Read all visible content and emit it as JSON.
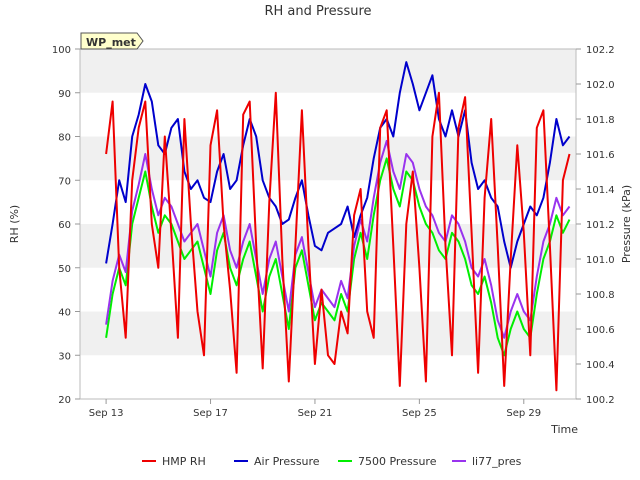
{
  "chart_data": {
    "type": "line",
    "title": "RH and Pressure",
    "badge": "WP_met",
    "xlabel": "Time",
    "ylabel_left": "RH (%)",
    "ylabel_right": "Pressure (kPa)",
    "x_range": [
      "Sep 13",
      "Oct 1"
    ],
    "x_ticks": [
      "Sep 13",
      "Sep 17",
      "Sep 21",
      "Sep 25",
      "Sep 29"
    ],
    "ylim_left": [
      20,
      100
    ],
    "yticks_left": [
      "20",
      "30",
      "40",
      "50",
      "60",
      "70",
      "80",
      "90",
      "100"
    ],
    "ylim_right": [
      100.2,
      102.2
    ],
    "yticks_right": [
      "100.2",
      "100.4",
      "100.6",
      "100.8",
      "101.0",
      "101.2",
      "101.4",
      "101.6",
      "101.8",
      "102.0",
      "102.2"
    ],
    "grid": "horizontal bands",
    "legend_position": "bottom",
    "colors": {
      "HMP RH": "#ee0000",
      "Air Pressure": "#0000cc",
      "7500 Pressure": "#00ee00",
      "li77_pres": "#9933ee",
      "band": "#f0f0f0",
      "badge_bg": "#ffffcc",
      "badge_text": "#990000"
    },
    "series": [
      {
        "name": "HMP RH",
        "axis": "left",
        "x": [
          "Sep 13.0",
          "Sep 13.25",
          "Sep 13.5",
          "Sep 13.75",
          "Sep 14.0",
          "Sep 14.25",
          "Sep 14.5",
          "Sep 14.75",
          "Sep 15.0",
          "Sep 15.25",
          "Sep 15.5",
          "Sep 15.75",
          "Sep 16.0",
          "Sep 16.25",
          "Sep 16.5",
          "Sep 16.75",
          "Sep 17.0",
          "Sep 17.25",
          "Sep 17.5",
          "Sep 17.75",
          "Sep 18.0",
          "Sep 18.25",
          "Sep 18.5",
          "Sep 18.75",
          "Sep 19.0",
          "Sep 19.25",
          "Sep 19.5",
          "Sep 19.75",
          "Sep 20.0",
          "Sep 20.25",
          "Sep 20.5",
          "Sep 20.75",
          "Sep 21.0",
          "Sep 21.25",
          "Sep 21.5",
          "Sep 21.75",
          "Sep 22.0",
          "Sep 22.25",
          "Sep 22.5",
          "Sep 22.75",
          "Sep 23.0",
          "Sep 23.25",
          "Sep 23.5",
          "Sep 23.75",
          "Sep 24.0",
          "Sep 24.25",
          "Sep 24.5",
          "Sep 24.75",
          "Sep 25.0",
          "Sep 25.25",
          "Sep 25.5",
          "Sep 25.75",
          "Sep 26.0",
          "Sep 26.25",
          "Sep 26.5",
          "Sep 26.75",
          "Sep 27.0",
          "Sep 27.25",
          "Sep 27.5",
          "Sep 27.75",
          "Sep 28.0",
          "Sep 28.25",
          "Sep 28.5",
          "Sep 28.75",
          "Sep 29.0",
          "Sep 29.25",
          "Sep 29.5",
          "Sep 29.75",
          "Sep 30.0",
          "Sep 30.25",
          "Sep 30.5",
          "Sep 30.75"
        ],
        "values": [
          76,
          88,
          50,
          34,
          70,
          82,
          88,
          60,
          50,
          80,
          58,
          34,
          84,
          60,
          40,
          30,
          78,
          86,
          60,
          45,
          26,
          85,
          88,
          55,
          27,
          65,
          90,
          52,
          24,
          55,
          86,
          55,
          28,
          45,
          30,
          28,
          40,
          35,
          62,
          68,
          40,
          34,
          82,
          86,
          55,
          23,
          60,
          72,
          50,
          24,
          80,
          90,
          55,
          30,
          82,
          89,
          58,
          26,
          66,
          84,
          55,
          23,
          52,
          78,
          58,
          30,
          82,
          86,
          55,
          22,
          70,
          76
        ],
        "unit": "%"
      },
      {
        "name": "Air Pressure",
        "axis": "left",
        "x": [
          "Sep 13.0",
          "Sep 13.25",
          "Sep 13.5",
          "Sep 13.75",
          "Sep 14.0",
          "Sep 14.25",
          "Sep 14.5",
          "Sep 14.75",
          "Sep 15.0",
          "Sep 15.25",
          "Sep 15.5",
          "Sep 15.75",
          "Sep 16.0",
          "Sep 16.25",
          "Sep 16.5",
          "Sep 16.75",
          "Sep 17.0",
          "Sep 17.25",
          "Sep 17.5",
          "Sep 17.75",
          "Sep 18.0",
          "Sep 18.25",
          "Sep 18.5",
          "Sep 18.75",
          "Sep 19.0",
          "Sep 19.25",
          "Sep 19.5",
          "Sep 19.75",
          "Sep 20.0",
          "Sep 20.25",
          "Sep 20.5",
          "Sep 20.75",
          "Sep 21.0",
          "Sep 21.25",
          "Sep 21.5",
          "Sep 21.75",
          "Sep 22.0",
          "Sep 22.25",
          "Sep 22.5",
          "Sep 22.75",
          "Sep 23.0",
          "Sep 23.25",
          "Sep 23.5",
          "Sep 23.75",
          "Sep 24.0",
          "Sep 24.25",
          "Sep 24.5",
          "Sep 24.75",
          "Sep 25.0",
          "Sep 25.25",
          "Sep 25.5",
          "Sep 25.75",
          "Sep 26.0",
          "Sep 26.25",
          "Sep 26.5",
          "Sep 26.75",
          "Sep 27.0",
          "Sep 27.25",
          "Sep 27.5",
          "Sep 27.75",
          "Sep 28.0",
          "Sep 28.25",
          "Sep 28.5",
          "Sep 28.75",
          "Sep 29.0",
          "Sep 29.25",
          "Sep 29.5",
          "Sep 29.75",
          "Sep 30.0",
          "Sep 30.25",
          "Sep 30.5",
          "Sep 30.75"
        ],
        "values": [
          51,
          60,
          70,
          65,
          80,
          85,
          92,
          88,
          78,
          76,
          82,
          84,
          72,
          68,
          70,
          66,
          65,
          72,
          76,
          68,
          70,
          78,
          84,
          80,
          70,
          66,
          64,
          60,
          61,
          66,
          70,
          62,
          55,
          54,
          58,
          59,
          60,
          64,
          57,
          62,
          66,
          75,
          82,
          84,
          80,
          90,
          97,
          92,
          86,
          90,
          94,
          84,
          80,
          86,
          80,
          86,
          74,
          68,
          70,
          66,
          64,
          56,
          50,
          56,
          60,
          64,
          62,
          66,
          74,
          84,
          78,
          80
        ],
        "unit": "%"
      },
      {
        "name": "7500 Pressure",
        "axis": "left",
        "x": [
          "Sep 13.0",
          "Sep 13.25",
          "Sep 13.5",
          "Sep 13.75",
          "Sep 14.0",
          "Sep 14.25",
          "Sep 14.5",
          "Sep 14.75",
          "Sep 15.0",
          "Sep 15.25",
          "Sep 15.5",
          "Sep 15.75",
          "Sep 16.0",
          "Sep 16.25",
          "Sep 16.5",
          "Sep 16.75",
          "Sep 17.0",
          "Sep 17.25",
          "Sep 17.5",
          "Sep 17.75",
          "Sep 18.0",
          "Sep 18.25",
          "Sep 18.5",
          "Sep 18.75",
          "Sep 19.0",
          "Sep 19.25",
          "Sep 19.5",
          "Sep 19.75",
          "Sep 20.0",
          "Sep 20.25",
          "Sep 20.5",
          "Sep 20.75",
          "Sep 21.0",
          "Sep 21.25",
          "Sep 21.5",
          "Sep 21.75",
          "Sep 22.0",
          "Sep 22.25",
          "Sep 22.5",
          "Sep 22.75",
          "Sep 23.0",
          "Sep 23.25",
          "Sep 23.5",
          "Sep 23.75",
          "Sep 24.0",
          "Sep 24.25",
          "Sep 24.5",
          "Sep 24.75",
          "Sep 25.0",
          "Sep 25.25",
          "Sep 25.5",
          "Sep 25.75",
          "Sep 26.0",
          "Sep 26.25",
          "Sep 26.5",
          "Sep 26.75",
          "Sep 27.0",
          "Sep 27.25",
          "Sep 27.5",
          "Sep 27.75",
          "Sep 28.0",
          "Sep 28.25",
          "Sep 28.5",
          "Sep 28.75",
          "Sep 29.0",
          "Sep 29.25",
          "Sep 29.5",
          "Sep 29.75",
          "Sep 30.0",
          "Sep 30.25",
          "Sep 30.5",
          "Sep 30.75"
        ],
        "values": [
          34,
          44,
          50,
          46,
          60,
          66,
          72,
          64,
          58,
          62,
          60,
          56,
          52,
          54,
          56,
          50,
          44,
          54,
          58,
          50,
          46,
          52,
          56,
          48,
          40,
          48,
          52,
          44,
          36,
          50,
          54,
          46,
          38,
          42,
          40,
          38,
          44,
          40,
          52,
          58,
          52,
          62,
          70,
          75,
          68,
          64,
          72,
          70,
          64,
          60,
          58,
          54,
          52,
          58,
          56,
          52,
          46,
          44,
          48,
          42,
          34,
          30,
          36,
          40,
          36,
          34,
          44,
          52,
          56,
          62,
          58,
          61
        ],
        "unit": "%"
      },
      {
        "name": "li77_pres",
        "axis": "left",
        "x": [
          "Sep 13.0",
          "Sep 13.25",
          "Sep 13.5",
          "Sep 13.75",
          "Sep 14.0",
          "Sep 14.25",
          "Sep 14.5",
          "Sep 14.75",
          "Sep 15.0",
          "Sep 15.25",
          "Sep 15.5",
          "Sep 15.75",
          "Sep 16.0",
          "Sep 16.25",
          "Sep 16.5",
          "Sep 16.75",
          "Sep 17.0",
          "Sep 17.25",
          "Sep 17.5",
          "Sep 17.75",
          "Sep 18.0",
          "Sep 18.25",
          "Sep 18.5",
          "Sep 18.75",
          "Sep 19.0",
          "Sep 19.25",
          "Sep 19.5",
          "Sep 19.75",
          "Sep 20.0",
          "Sep 20.25",
          "Sep 20.5",
          "Sep 20.75",
          "Sep 21.0",
          "Sep 21.25",
          "Sep 21.5",
          "Sep 21.75",
          "Sep 22.0",
          "Sep 22.25",
          "Sep 22.5",
          "Sep 22.75",
          "Sep 23.0",
          "Sep 23.25",
          "Sep 23.5",
          "Sep 23.75",
          "Sep 24.0",
          "Sep 24.25",
          "Sep 24.5",
          "Sep 24.75",
          "Sep 25.0",
          "Sep 25.25",
          "Sep 25.5",
          "Sep 25.75",
          "Sep 26.0",
          "Sep 26.25",
          "Sep 26.5",
          "Sep 26.75",
          "Sep 27.0",
          "Sep 27.25",
          "Sep 27.5",
          "Sep 27.75",
          "Sep 28.0",
          "Sep 28.25",
          "Sep 28.5",
          "Sep 28.75",
          "Sep 29.0",
          "Sep 29.25",
          "Sep 29.5",
          "Sep 29.75",
          "Sep 30.0",
          "Sep 30.25",
          "Sep 30.5",
          "Sep 30.75"
        ],
        "values": [
          37,
          47,
          53,
          49,
          63,
          69,
          76,
          68,
          62,
          66,
          64,
          60,
          56,
          58,
          60,
          54,
          48,
          58,
          62,
          54,
          50,
          56,
          60,
          52,
          44,
          52,
          56,
          48,
          40,
          53,
          57,
          49,
          41,
          45,
          43,
          41,
          47,
          43,
          55,
          61,
          56,
          66,
          74,
          79,
          72,
          68,
          76,
          74,
          68,
          64,
          62,
          58,
          56,
          62,
          60,
          56,
          50,
          48,
          52,
          46,
          38,
          34,
          40,
          44,
          40,
          38,
          48,
          56,
          60,
          66,
          62,
          64
        ],
        "unit": "%"
      }
    ]
  }
}
